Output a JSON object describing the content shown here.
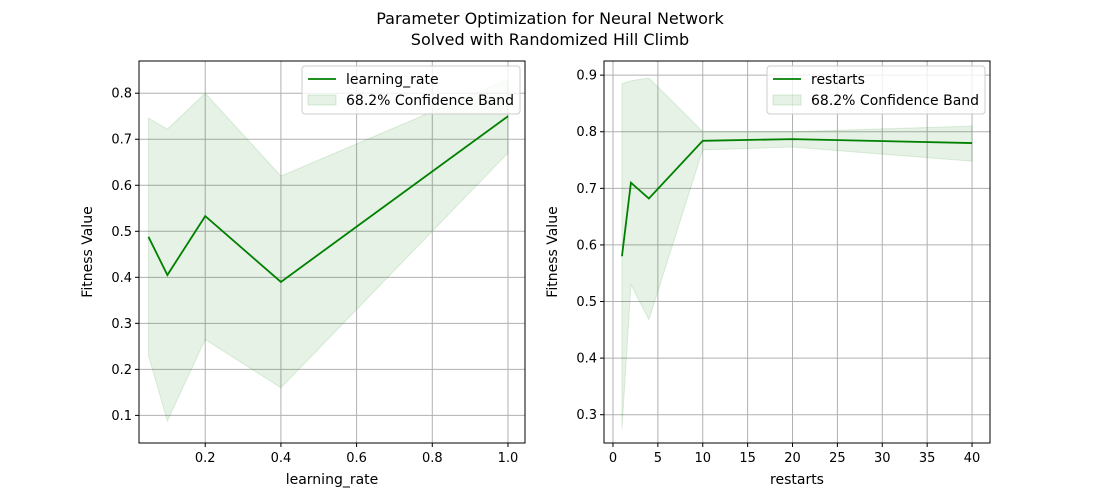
{
  "figure": {
    "title_line1": "Parameter Optimization for Neural Network",
    "title_line2": "Solved with Randomized Hill Climb"
  },
  "colors": {
    "line": "#008000",
    "band": "#008000",
    "grid": "#b0b0b0"
  },
  "chart_data": [
    {
      "type": "line",
      "xlabel": "learning_rate",
      "ylabel": "Fitness Value",
      "xlim": [
        0.025,
        1.045
      ],
      "ylim": [
        0.04,
        0.87
      ],
      "xticks": [
        0.2,
        0.4,
        0.6,
        0.8,
        1.0
      ],
      "xtick_labels": [
        "0.2",
        "0.4",
        "0.6",
        "0.8",
        "1.0"
      ],
      "yticks": [
        0.1,
        0.2,
        0.3,
        0.4,
        0.5,
        0.6,
        0.7,
        0.8
      ],
      "ytick_labels": [
        "0.1",
        "0.2",
        "0.3",
        "0.4",
        "0.5",
        "0.6",
        "0.7",
        "0.8"
      ],
      "grid": true,
      "legend_position": "top-right",
      "series": [
        {
          "name": "learning_rate",
          "x": [
            0.05,
            0.1,
            0.2,
            0.4,
            1.0
          ],
          "y": [
            0.488,
            0.405,
            0.533,
            0.39,
            0.75
          ],
          "band_lower": [
            0.23,
            0.088,
            0.265,
            0.16,
            0.67
          ],
          "band_upper": [
            0.746,
            0.722,
            0.8,
            0.62,
            0.83
          ]
        }
      ],
      "legend": [
        "learning_rate",
        "68.2% Confidence Band"
      ]
    },
    {
      "type": "line",
      "xlabel": "restarts",
      "ylabel": "Fitness Value",
      "xlim": [
        -1.0,
        42.0
      ],
      "ylim": [
        0.25,
        0.925
      ],
      "xticks": [
        0,
        5,
        10,
        15,
        20,
        25,
        30,
        35,
        40
      ],
      "xtick_labels": [
        "0",
        "5",
        "10",
        "15",
        "20",
        "25",
        "30",
        "35",
        "40"
      ],
      "yticks": [
        0.3,
        0.4,
        0.5,
        0.6,
        0.7,
        0.8,
        0.9
      ],
      "ytick_labels": [
        "0.3",
        "0.4",
        "0.5",
        "0.6",
        "0.7",
        "0.8",
        "0.9"
      ],
      "grid": true,
      "legend_position": "top-right",
      "series": [
        {
          "name": "restarts",
          "x": [
            1,
            2,
            4,
            10,
            20,
            40
          ],
          "y": [
            0.58,
            0.71,
            0.682,
            0.784,
            0.787,
            0.78
          ],
          "band_lower": [
            0.275,
            0.53,
            0.468,
            0.768,
            0.773,
            0.748
          ],
          "band_upper": [
            0.885,
            0.89,
            0.895,
            0.8,
            0.8,
            0.81
          ]
        }
      ],
      "legend": [
        "restarts",
        "68.2% Confidence Band"
      ]
    }
  ]
}
